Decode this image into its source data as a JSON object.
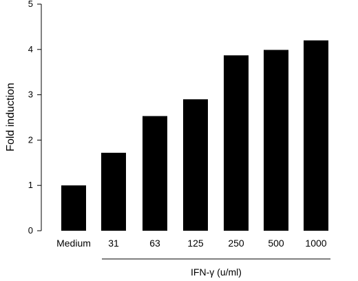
{
  "chart_data": {
    "type": "bar",
    "categories": [
      "Medium",
      "31",
      "63",
      "125",
      "250",
      "500",
      "1000"
    ],
    "values": [
      1.0,
      1.72,
      2.53,
      2.9,
      3.87,
      3.99,
      4.2
    ],
    "title": "",
    "xlabel": "IFN-γ (u/ml)",
    "ylabel": "Fold induction",
    "ylim": [
      0,
      5
    ],
    "yticks": [
      "0",
      "1",
      "2",
      "3",
      "4",
      "5"
    ],
    "bar_color": "#000000",
    "grid": false,
    "legend": "none"
  }
}
